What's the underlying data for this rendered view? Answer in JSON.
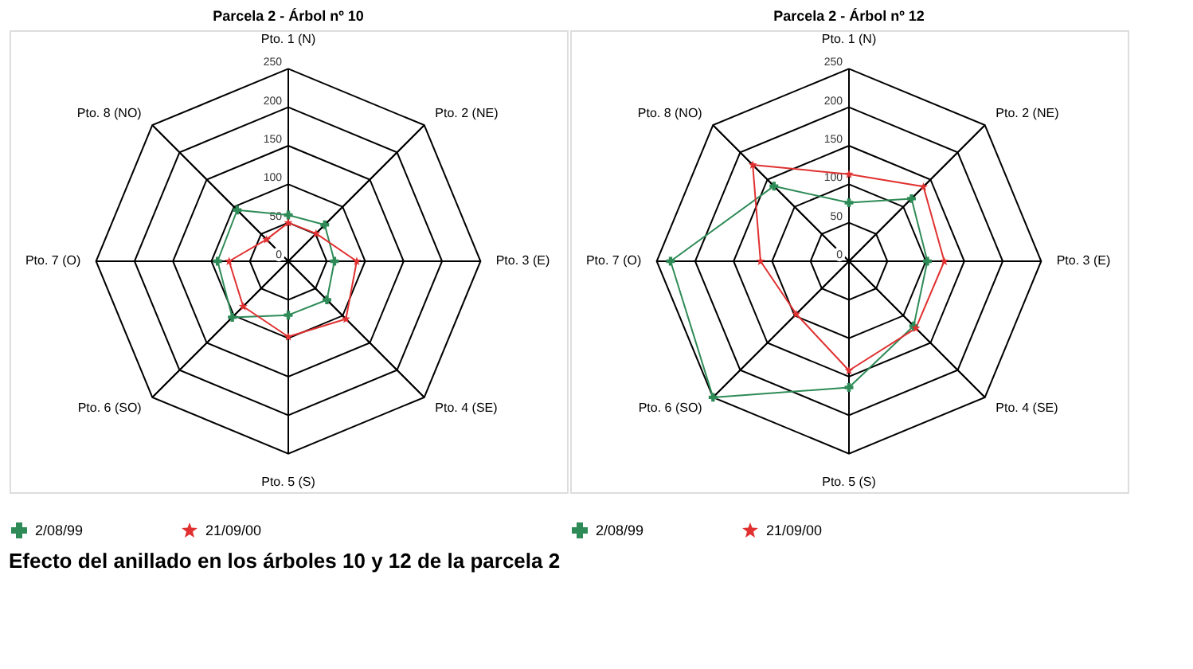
{
  "chart_data": [
    {
      "type": "radar",
      "title": "Parcela 2 - Árbol nº 10",
      "categories": [
        "Pto. 1 (N)",
        "Pto. 2 (NE)",
        "Pto. 3 (E)",
        "Pto. 4 (SE)",
        "Pto. 5 (S)",
        "Pto. 6 (SO)",
        "Pto. 7 (O)",
        "Pto. 8 (NO)"
      ],
      "ylim": [
        0,
        250
      ],
      "yticks": [
        0,
        50,
        100,
        150,
        200,
        250
      ],
      "legend": "bottom",
      "grid": true,
      "series": [
        {
          "name": "2/08/99",
          "color": "#2e8b57",
          "marker": "cross",
          "values": [
            60,
            67,
            60,
            71,
            70,
            103,
            92,
            94
          ]
        },
        {
          "name": "21/09/00",
          "color": "#e03030",
          "marker": "star",
          "values": [
            50,
            51,
            89,
            106,
            98,
            83,
            77,
            40
          ]
        }
      ]
    },
    {
      "type": "radar",
      "title": "Parcela 2 - Árbol nº 12",
      "categories": [
        "Pto. 1 (N)",
        "Pto. 2 (NE)",
        "Pto. 3 (E)",
        "Pto. 4 (SE)",
        "Pto. 5 (S)",
        "Pto. 6 (SO)",
        "Pto. 7 (O)",
        "Pto. 8 (NO)"
      ],
      "ylim": [
        0,
        250
      ],
      "yticks": [
        0,
        50,
        100,
        150,
        200,
        250
      ],
      "legend": "bottom",
      "grid": true,
      "annotations": [
        "Efecto del anillado en los árboles 10 y 12 de la parcela 2"
      ],
      "series": [
        {
          "name": "2/08/99",
          "color": "#2e8b57",
          "marker": "cross",
          "values": [
            76,
            115,
            102,
            119,
            164,
            250,
            232,
            138
          ]
        },
        {
          "name": "21/09/00",
          "color": "#e03030",
          "marker": "star",
          "values": [
            113,
            137,
            124,
            123,
            142,
            97,
            115,
            177
          ]
        }
      ]
    }
  ]
}
